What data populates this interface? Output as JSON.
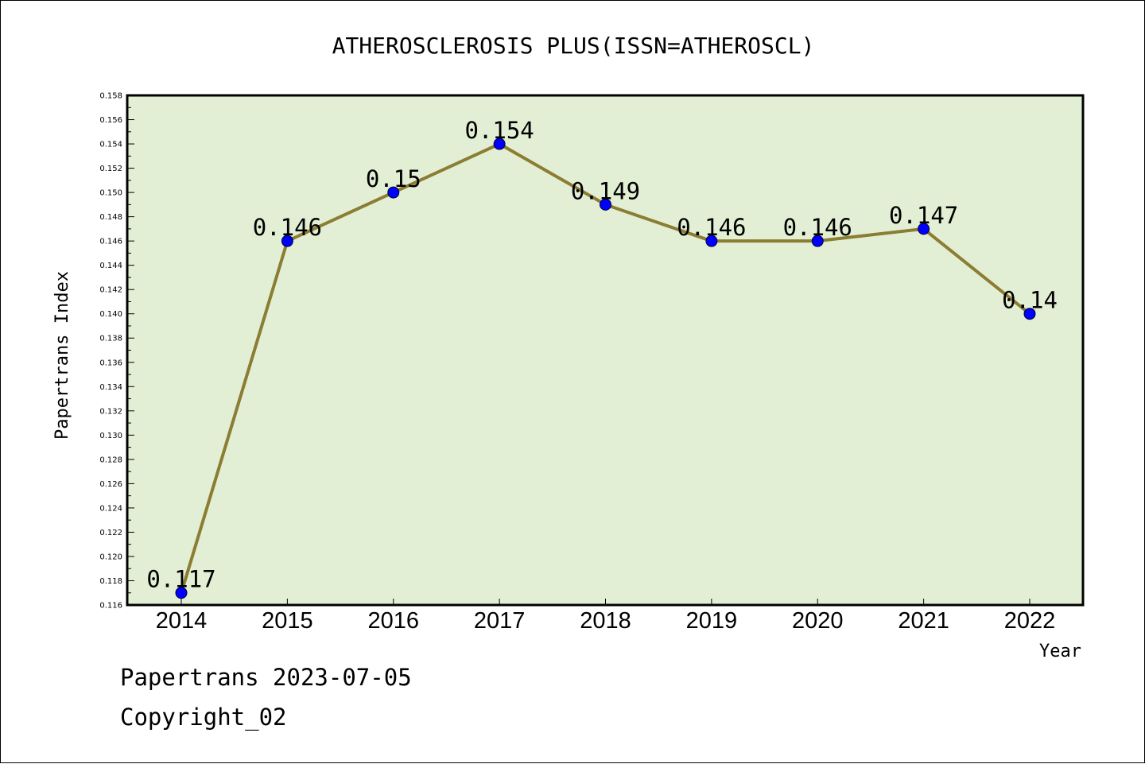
{
  "footer": {
    "line1": "Papertrans 2023-07-05",
    "line2": "Copyright_02"
  },
  "colors": {
    "plot_background": "#e2efd5",
    "line": "#8b7d32",
    "marker": "#0000ff",
    "axis": "#000000"
  },
  "chart_data": {
    "type": "line",
    "title": "ATHEROSCLEROSIS PLUS(ISSN=ATHEROSCL)",
    "xlabel": "Year",
    "ylabel": "Papertrans Index",
    "categories": [
      "2014",
      "2015",
      "2016",
      "2017",
      "2018",
      "2019",
      "2020",
      "2021",
      "2022"
    ],
    "values": [
      0.117,
      0.146,
      0.15,
      0.154,
      0.149,
      0.146,
      0.146,
      0.147,
      0.14
    ],
    "data_labels": [
      "0.117",
      "0.146",
      "0.15",
      "0.154",
      "0.149",
      "0.146",
      "0.146",
      "0.147",
      "0.14"
    ],
    "ylim": [
      0.116,
      0.158
    ],
    "ytick_step": 0.002,
    "yticks": [
      "0.116",
      "0.118",
      "0.120",
      "0.122",
      "0.124",
      "0.126",
      "0.128",
      "0.130",
      "0.132",
      "0.134",
      "0.136",
      "0.138",
      "0.140",
      "0.142",
      "0.144",
      "0.146",
      "0.148",
      "0.150",
      "0.152",
      "0.154",
      "0.156",
      "0.158"
    ],
    "grid": false,
    "legend": "none"
  }
}
